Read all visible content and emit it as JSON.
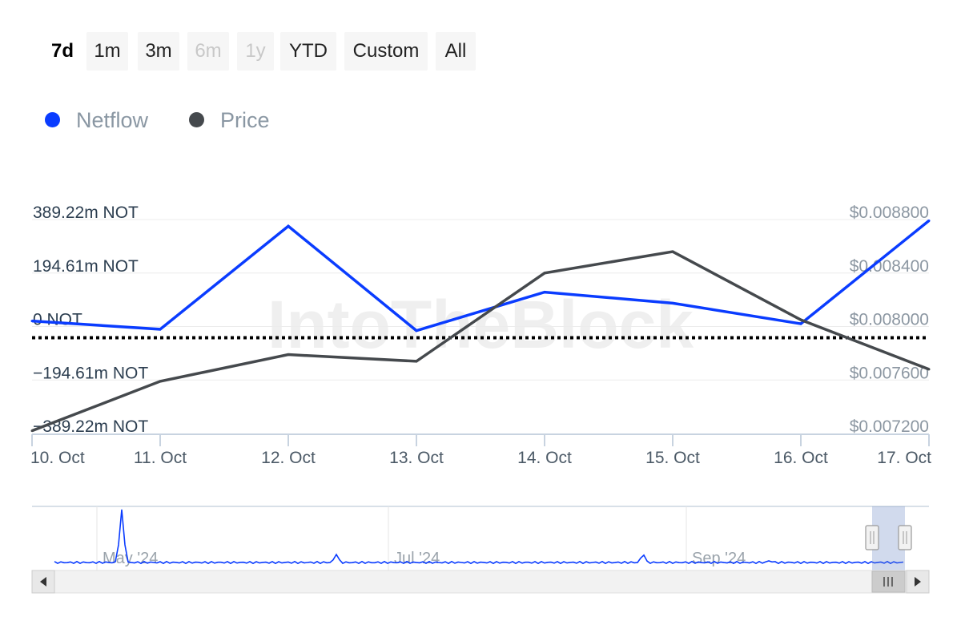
{
  "range_selector": {
    "buttons": [
      {
        "label": "7d",
        "state": "active"
      },
      {
        "label": "1m",
        "state": "normal"
      },
      {
        "label": "3m",
        "state": "normal"
      },
      {
        "label": "6m",
        "state": "disabled"
      },
      {
        "label": "1y",
        "state": "disabled"
      },
      {
        "label": "YTD",
        "state": "normal"
      },
      {
        "label": "Custom",
        "state": "normal"
      },
      {
        "label": "All",
        "state": "normal"
      }
    ]
  },
  "legend": {
    "items": [
      {
        "label": "Netflow",
        "color": "#0a3cff"
      },
      {
        "label": "Price",
        "color": "#45494d"
      }
    ]
  },
  "watermark": "IntoTheBlock",
  "chart_data": {
    "type": "line",
    "x": [
      "10. Oct",
      "11. Oct",
      "12. Oct",
      "13. Oct",
      "14. Oct",
      "15. Oct",
      "16. Oct",
      "17. Oct"
    ],
    "series": [
      {
        "name": "Netflow",
        "axis": "left",
        "unit": "m NOT",
        "color": "#0a3cff",
        "values": [
          20,
          -10,
          365,
          -15,
          125,
          85,
          10,
          385
        ]
      },
      {
        "name": "Price",
        "axis": "right",
        "unit": "USD",
        "color": "#45494d",
        "values": [
          0.00722,
          0.00759,
          0.00779,
          0.00774,
          0.0084,
          0.00856,
          0.00805,
          0.00768
        ]
      }
    ],
    "y_left": {
      "ticks": [
        "389.22m NOT",
        "194.61m NOT",
        "0 NOT",
        "−194.61m NOT",
        "−389.22m NOT"
      ],
      "range": [
        -389.22,
        389.22
      ]
    },
    "y_right": {
      "ticks": [
        "$0.008800",
        "$0.008400",
        "$0.008000",
        "$0.007600",
        "$0.007200"
      ],
      "range": [
        0.0072,
        0.0088
      ]
    },
    "zero_line": "dotted",
    "navigator": {
      "labels": [
        "May '24",
        "Jul '24",
        "Sep '24"
      ],
      "selected_range": "last 7 days"
    }
  }
}
